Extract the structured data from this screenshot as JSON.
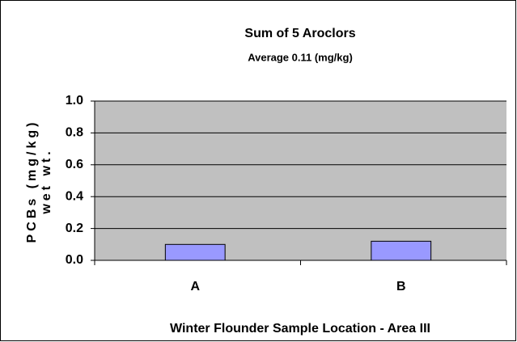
{
  "chart_data": {
    "type": "bar",
    "title": "Sum of 5 Aroclors",
    "subtitle": "Average 0.11 (mg/kg)",
    "ylabel": [
      "PCBs (mg/kg)",
      "wet wt."
    ],
    "xlabel": "Winter Flounder Sample Location - Area III",
    "categories": [
      "A",
      "B"
    ],
    "values": [
      0.1,
      0.12
    ],
    "color": "#9999ff",
    "ylim": [
      0,
      1
    ],
    "yticks": [
      {
        "value": 0,
        "label": "0.0"
      },
      0.2,
      0.4,
      0.6,
      0.8,
      {
        "value": 1,
        "label": "1.0"
      }
    ],
    "grid": true
  }
}
